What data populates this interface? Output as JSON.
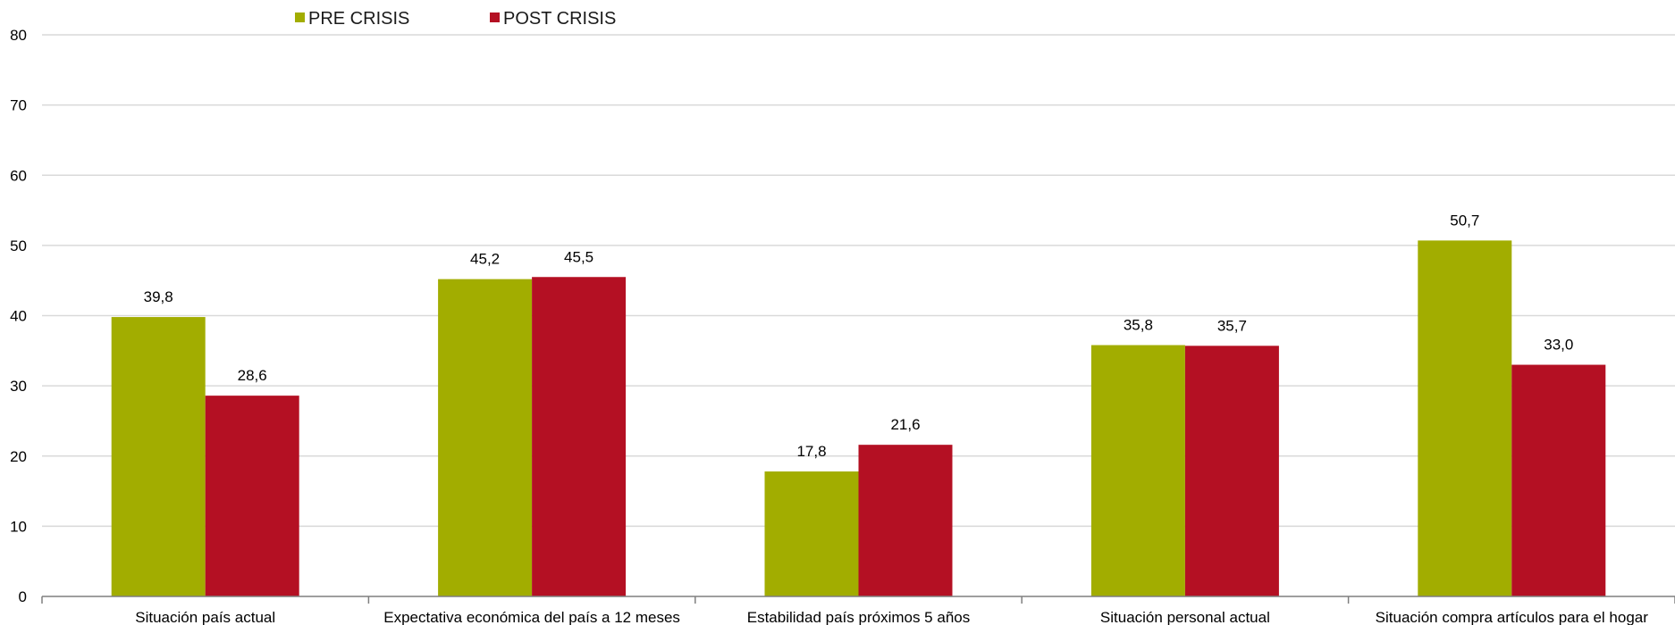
{
  "chart_data": {
    "type": "bar",
    "categories": [
      "Situación país actual",
      "Expectativa económica del país a 12 meses",
      "Estabilidad país próximos 5 años",
      "Situación personal actual",
      "Situación compra artículos para el hogar"
    ],
    "series": [
      {
        "name": "PRE CRISIS",
        "color": "#a2ad00",
        "values": [
          39.8,
          45.2,
          17.8,
          35.8,
          50.7
        ],
        "labels": [
          "39,8",
          "45,2",
          "17,8",
          "35,8",
          "50,7"
        ]
      },
      {
        "name": "POST CRISIS",
        "color": "#b41023",
        "values": [
          28.6,
          45.5,
          21.6,
          35.7,
          33.0
        ],
        "labels": [
          "28,6",
          "45,5",
          "21,6",
          "35,7",
          "33,0"
        ]
      }
    ],
    "ylim": [
      0,
      80
    ],
    "yticks": [
      0,
      10,
      20,
      30,
      40,
      50,
      60,
      70,
      80
    ],
    "ytick_labels": [
      "0",
      "10",
      "20",
      "30",
      "40",
      "50",
      "60",
      "70",
      "80"
    ],
    "title": "",
    "xlabel": "",
    "ylabel": "",
    "grid": true,
    "legend_position": "top-left"
  }
}
